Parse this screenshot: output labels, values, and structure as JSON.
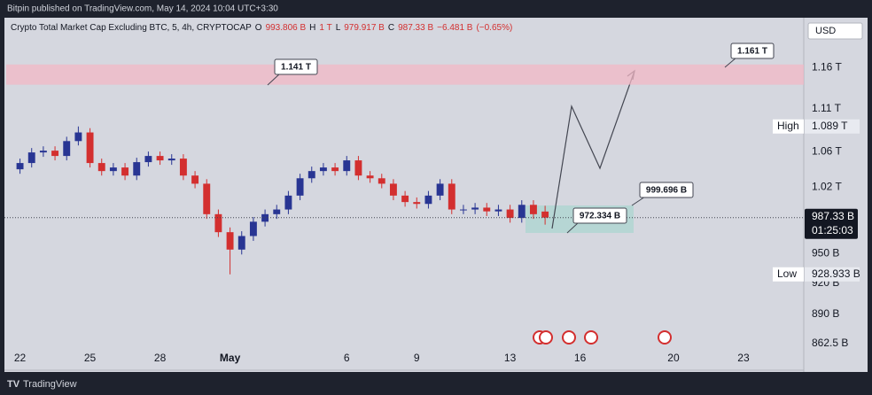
{
  "header": {
    "text": "Bitpin published on TradingView.com, May 14, 2024 10:04 UTC+3:30"
  },
  "footer": {
    "text": "TradingView"
  },
  "chart_data": {
    "type": "candlestick",
    "title": "Crypto Total Market Cap Excluding BTC, 5, 4h, CRYPTOCAP",
    "legend_values": [
      {
        "key": "O",
        "value": 993.806,
        "label": "993.806 B"
      },
      {
        "key": "H",
        "value": 1000,
        "label": "1 T"
      },
      {
        "key": "L",
        "value": 979.917,
        "label": "979.917 B"
      },
      {
        "key": "C",
        "value": 987.33,
        "label": "987.33 B"
      }
    ],
    "change": {
      "value": -6.481,
      "label": "−6.481 B"
    },
    "change_percent": {
      "value": -0.65,
      "label": "(−0.65%)"
    },
    "currency": "USD",
    "log_scale": true,
    "grid": false,
    "up_color": "#283593",
    "down_color": "#d32f2f",
    "x": [
      "2024-04-22 00:00",
      "2024-04-22 12:00",
      "2024-04-23 00:00",
      "2024-04-23 12:00",
      "2024-04-24 00:00",
      "2024-04-24 12:00",
      "2024-04-25 00:00",
      "2024-04-25 12:00",
      "2024-04-26 00:00",
      "2024-04-26 12:00",
      "2024-04-27 00:00",
      "2024-04-27 12:00",
      "2024-04-28 00:00",
      "2024-04-28 12:00",
      "2024-04-29 00:00",
      "2024-04-29 12:00",
      "2024-04-30 00:00",
      "2024-04-30 12:00",
      "2024-05-01 00:00",
      "2024-05-01 12:00",
      "2024-05-02 00:00",
      "2024-05-02 12:00",
      "2024-05-03 00:00",
      "2024-05-03 12:00",
      "2024-05-04 00:00",
      "2024-05-04 12:00",
      "2024-05-05 00:00",
      "2024-05-05 12:00",
      "2024-05-06 00:00",
      "2024-05-06 12:00",
      "2024-05-07 00:00",
      "2024-05-07 12:00",
      "2024-05-08 00:00",
      "2024-05-08 12:00",
      "2024-05-09 00:00",
      "2024-05-09 12:00",
      "2024-05-10 00:00",
      "2024-05-10 12:00",
      "2024-05-11 00:00",
      "2024-05-11 12:00",
      "2024-05-12 00:00",
      "2024-05-12 12:00",
      "2024-05-13 00:00",
      "2024-05-13 12:00",
      "2024-05-14 00:00",
      "2024-05-14 12:00"
    ],
    "open": [
      1040,
      1047,
      1059,
      1061,
      1055,
      1072,
      1082,
      1047,
      1038,
      1042,
      1033,
      1048,
      1055,
      1050,
      1052,
      1033,
      1024,
      991,
      972,
      954,
      968,
      983,
      991,
      996,
      1011,
      1030,
      1038,
      1042,
      1038,
      1050,
      1033,
      1030,
      1024,
      1011,
      1004,
      1002,
      1011,
      1024,
      996,
      996,
      998,
      994,
      996,
      987,
      1001,
      993.806
    ],
    "high": [
      1052,
      1064,
      1066,
      1066,
      1077,
      1089,
      1087,
      1052,
      1047,
      1047,
      1053,
      1060,
      1060,
      1057,
      1057,
      1038,
      1029,
      996,
      977,
      973,
      988,
      996,
      1001,
      1016,
      1035,
      1043,
      1047,
      1047,
      1055,
      1055,
      1038,
      1035,
      1029,
      1016,
      1009,
      1016,
      1029,
      1029,
      1001,
      1003,
      1003,
      1001,
      1001,
      1006,
      1006,
      1000
    ],
    "low": [
      1035,
      1042,
      1054,
      1050,
      1050,
      1067,
      1042,
      1033,
      1033,
      1028,
      1028,
      1043,
      1045,
      1045,
      1028,
      1019,
      986,
      967,
      928.933,
      949,
      963,
      978,
      986,
      991,
      1006,
      1025,
      1033,
      1033,
      1033,
      1028,
      1025,
      1019,
      1006,
      999,
      997,
      997,
      1006,
      991,
      991,
      991,
      989,
      989,
      982,
      982,
      986,
      979.917
    ],
    "close": [
      1047,
      1059,
      1061,
      1055,
      1072,
      1082,
      1047,
      1038,
      1042,
      1033,
      1048,
      1055,
      1050,
      1052,
      1033,
      1024,
      991,
      972,
      954,
      968,
      983,
      991,
      996,
      1011,
      1030,
      1038,
      1042,
      1038,
      1050,
      1033,
      1030,
      1024,
      1011,
      1004,
      1002,
      1011,
      1024,
      996,
      996,
      998,
      994,
      996,
      987,
      1001,
      991,
      987.33
    ],
    "xlim": [
      "2024-04-21 08:00",
      "2024-05-25 14:00"
    ],
    "xticks": [
      {
        "value": "2024-04-22 00:00",
        "label": "22"
      },
      {
        "value": "2024-04-25 00:00",
        "label": "25"
      },
      {
        "value": "2024-04-28 00:00",
        "label": "28"
      },
      {
        "value": "2024-05-01 00:00",
        "label": "May"
      },
      {
        "value": "2024-05-06 00:00",
        "label": "6"
      },
      {
        "value": "2024-05-09 00:00",
        "label": "9"
      },
      {
        "value": "2024-05-13 00:00",
        "label": "13"
      },
      {
        "value": "2024-05-16 00:00",
        "label": "16"
      },
      {
        "value": "2024-05-20 00:00",
        "label": "20"
      },
      {
        "value": "2024-05-23 00:00",
        "label": "23"
      }
    ],
    "ylim": [
      838,
      1224
    ],
    "yticks": [
      {
        "value": 1160,
        "label": "1.16 T"
      },
      {
        "value": 1110,
        "label": "1.11 T"
      },
      {
        "value": 1060,
        "label": "1.06 T"
      },
      {
        "value": 1020,
        "label": "1.02 T"
      },
      {
        "value": 950,
        "label": "950 B"
      },
      {
        "value": 920,
        "label": "920 B"
      },
      {
        "value": 890,
        "label": "890 B"
      },
      {
        "value": 862.5,
        "label": "862.5 B"
      }
    ],
    "last_price": {
      "value": 987.33,
      "label": "987.33 B"
    },
    "countdown": "01:25:03",
    "high_marker": {
      "name": "High",
      "value": 1089,
      "label": "1.089 T"
    },
    "low_marker": {
      "name": "Low",
      "value": 928.933,
      "label": "928.933 B"
    },
    "zone": {
      "low": 1139,
      "high": 1164,
      "color": "#f2b8c6"
    },
    "annotations": [
      {
        "value": 1141,
        "label": "1.141 T"
      },
      {
        "value": 1161,
        "label": "1.161 T"
      },
      {
        "value": 999.696,
        "label": "999.696 B"
      },
      {
        "value": 972.334,
        "label": "972.334 B"
      }
    ]
  }
}
